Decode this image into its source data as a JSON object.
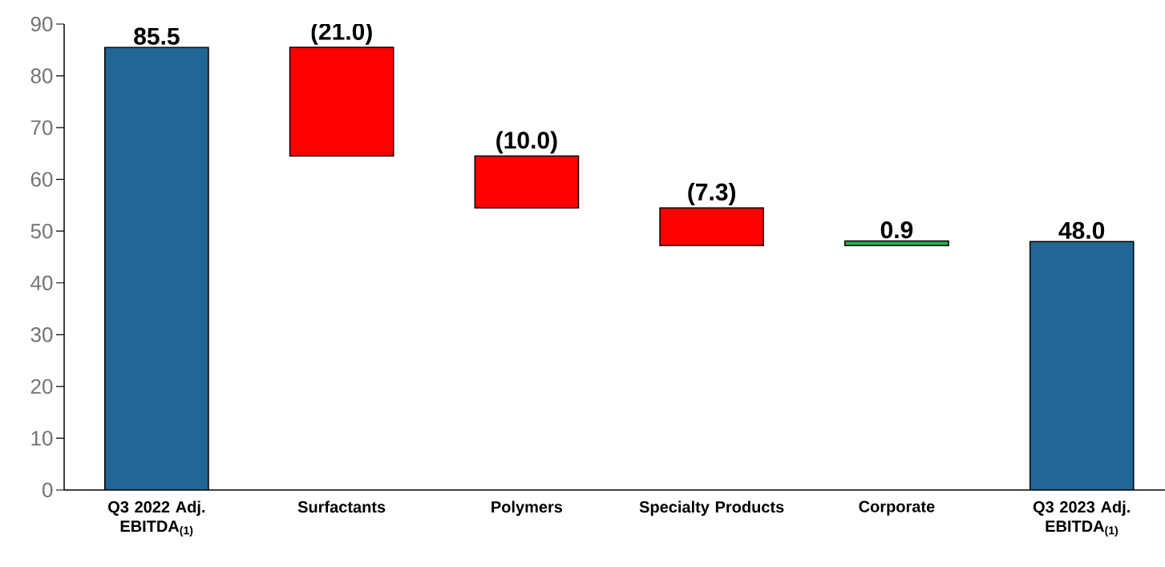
{
  "chart_data": {
    "type": "bar",
    "categories": [
      "Q3 2022 Adj. EBITDA$_{(1)}$",
      "Surfactants",
      "Polymers",
      "Specialty Products",
      "Corporate",
      "Q3 2023 Adj. EBITDA$_{(1)}$"
    ],
    "values": [
      85.5,
      -21.0,
      -10.0,
      -7.3,
      0.9,
      48.0
    ],
    "base": [
      0,
      85.5,
      64.5,
      54.5,
      47.2,
      0
    ],
    "colors": [
      "#216694",
      "#ff0000",
      "#ff0000",
      "#ff0000",
      "#22b14c",
      "#216694"
    ],
    "value_labels": [
      "85.5",
      "(21.0)",
      "(10.0)",
      "(7.3)",
      "0.9",
      "48.0"
    ],
    "ylim": [
      0,
      90
    ],
    "yticks": [
      0,
      10,
      20,
      30,
      40,
      50,
      60,
      70,
      80,
      90
    ],
    "grid": false
  }
}
